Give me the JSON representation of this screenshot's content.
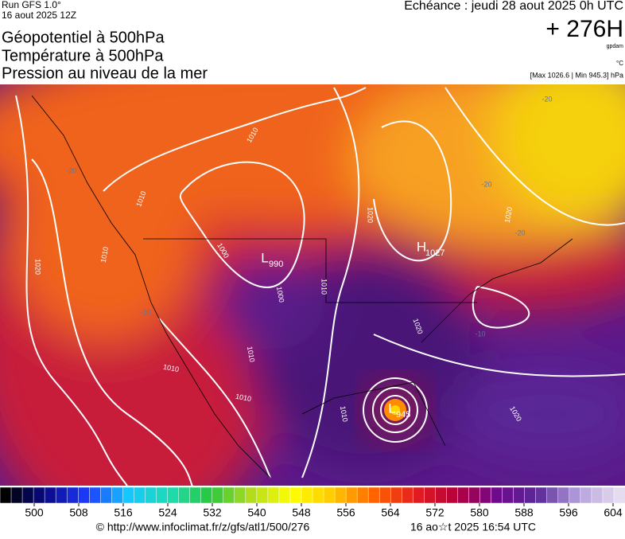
{
  "header": {
    "run": "Run GFS 1.0°",
    "run_date": "16 aout 2025 12Z",
    "titles": [
      "Géopotentiel à 500hPa",
      "Température à 500hPa",
      "Pression au niveau de la mer"
    ],
    "valid": "Echéance : jeudi 28 aout 2025 0h UTC",
    "lead": "+ 276H",
    "unit_geo": "gpdam",
    "unit_temp": "°C",
    "range": "[Max 1026.6 | Min 945.3] hPa"
  },
  "map": {
    "pressure_centers": [
      {
        "type": "L",
        "value": 990
      },
      {
        "type": "H",
        "value": 1027
      },
      {
        "type": "L",
        "value": 945
      }
    ],
    "isobar_labels": [
      1010,
      1010,
      1010,
      1020,
      1000,
      1000,
      1010,
      1020,
      1020,
      1020,
      1010,
      1010,
      1010,
      1020,
      1010
    ],
    "temperature_labels": [
      -20,
      -20,
      -20,
      -10,
      -10,
      -20
    ]
  },
  "colorbar": {
    "ticks": [
      500,
      508,
      516,
      524,
      532,
      540,
      548,
      556,
      564,
      572,
      580,
      588,
      596,
      604
    ],
    "stops": [
      "#000000",
      "#0a0a8c",
      "#1e3cff",
      "#14c8ff",
      "#1edcb4",
      "#28c83c",
      "#b4dc1e",
      "#ffff00",
      "#ffc800",
      "#ff6400",
      "#e61e1e",
      "#b4003c",
      "#6e0a8c",
      "#5a2896",
      "#b4a0dc",
      "#e6dcf0"
    ]
  },
  "footer": {
    "url": "© http://www.infoclimat.fr/z/gfs/atl1/500/276",
    "timestamp": "16 ao☆t 2025 16:54 UTC"
  }
}
